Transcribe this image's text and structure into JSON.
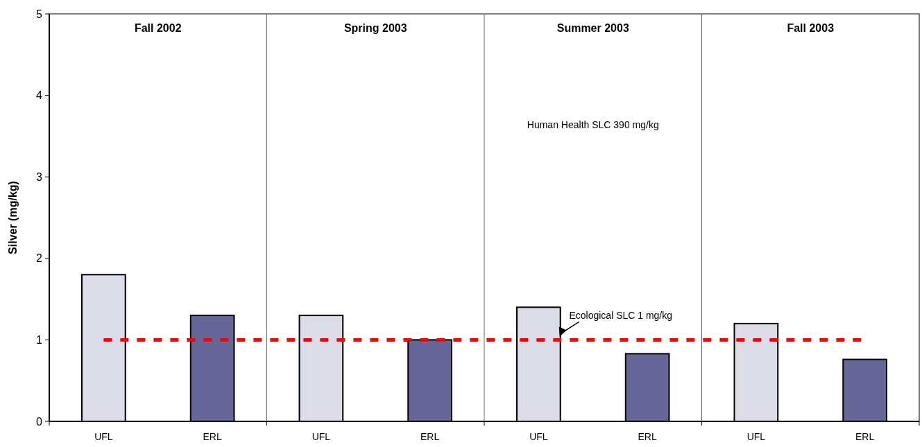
{
  "chart_data": {
    "type": "bar",
    "ylabel": "Silver (mg/kg)",
    "categories": [
      "UFL",
      "ERL",
      "UFL",
      "ERL",
      "UFL",
      "ERL",
      "UFL",
      "ERL"
    ],
    "values": [
      1.8,
      1.3,
      1.3,
      1.0,
      1.4,
      0.83,
      1.2,
      0.76
    ],
    "colors": [
      "#dcdce8",
      "#666699",
      "#dcdce8",
      "#666699",
      "#dcdce8",
      "#666699",
      "#dcdce8",
      "#666699"
    ],
    "ylim": [
      0,
      5
    ],
    "yticks": [
      0,
      1,
      2,
      3,
      4,
      5
    ],
    "grid": false,
    "ref_lines": [
      {
        "axis": "y",
        "value": 1,
        "label": "Ecological SLC 1 mg/kg",
        "color": "#ff0000",
        "line_style": "dashed"
      }
    ],
    "annotations": [
      "Fall 2002",
      "Spring 2003",
      "Summer 2003",
      "Fall 2003",
      "Human Health SLC 390 mg/kg"
    ]
  }
}
